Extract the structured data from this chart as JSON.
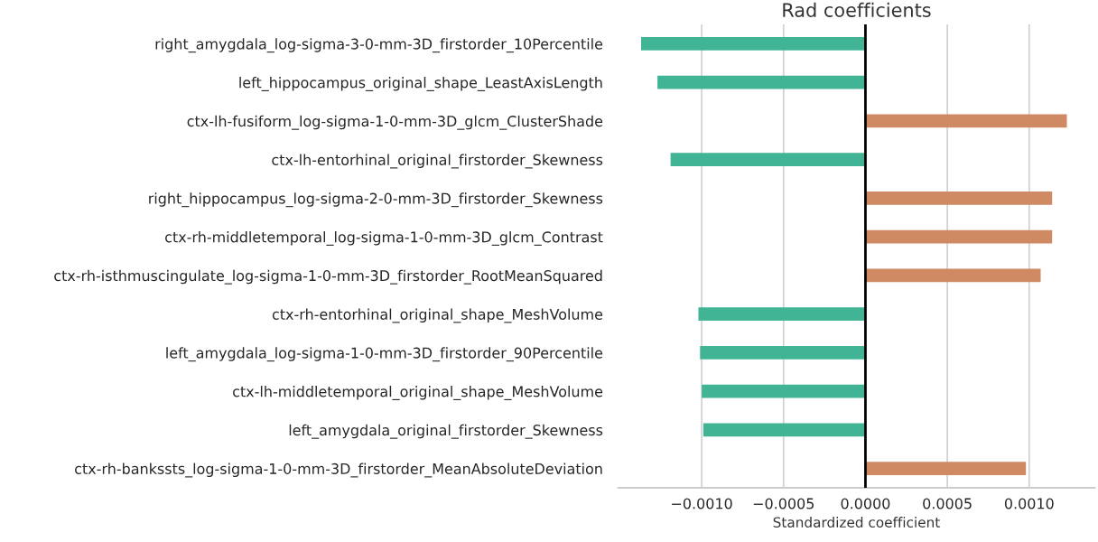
{
  "chart_data": {
    "type": "bar",
    "orientation": "horizontal",
    "title": "Rad coefficients",
    "xlabel": "Standardized coefficient",
    "categories": [
      "right_amygdala_log-sigma-3-0-mm-3D_firstorder_10Percentile",
      "left_hippocampus_original_shape_LeastAxisLength",
      "ctx-lh-fusiform_log-sigma-1-0-mm-3D_glcm_ClusterShade",
      "ctx-lh-entorhinal_original_firstorder_Skewness",
      "right_hippocampus_log-sigma-2-0-mm-3D_firstorder_Skewness",
      "ctx-rh-middletemporal_log-sigma-1-0-mm-3D_glcm_Contrast",
      "ctx-rh-isthmuscingulate_log-sigma-1-0-mm-3D_firstorder_RootMeanSquared",
      "ctx-rh-entorhinal_original_shape_MeshVolume",
      "left_amygdala_log-sigma-1-0-mm-3D_firstorder_90Percentile",
      "ctx-lh-middletemporal_original_shape_MeshVolume",
      "left_amygdala_original_firstorder_Skewness",
      "ctx-rh-bankssts_log-sigma-1-0-mm-3D_firstorder_MeanAbsoluteDeviation"
    ],
    "values": [
      -0.00137,
      -0.00127,
      0.00123,
      -0.00119,
      0.00114,
      0.00114,
      0.00107,
      -0.00102,
      -0.00101,
      -0.001,
      -0.00099,
      0.00098
    ],
    "colors": [
      "#41b496",
      "#41b496",
      "#cf8a64",
      "#41b496",
      "#cf8a64",
      "#cf8a64",
      "#cf8a64",
      "#41b496",
      "#41b496",
      "#41b496",
      "#41b496",
      "#cf8a64"
    ],
    "xlim": [
      -0.00151,
      0.0014
    ],
    "xticks": [
      {
        "value": -0.001,
        "label": "−0.0010"
      },
      {
        "value": -0.0005,
        "label": "−0.0005"
      },
      {
        "value": 0,
        "label": "0.0000"
      },
      {
        "value": 0.0005,
        "label": "0.0005"
      },
      {
        "value": 0.001,
        "label": "0.0010"
      }
    ],
    "ref_lines": [
      {
        "axis": "x",
        "value": 0,
        "color": "#000000",
        "line_style": "solid"
      }
    ],
    "grid": "x"
  }
}
